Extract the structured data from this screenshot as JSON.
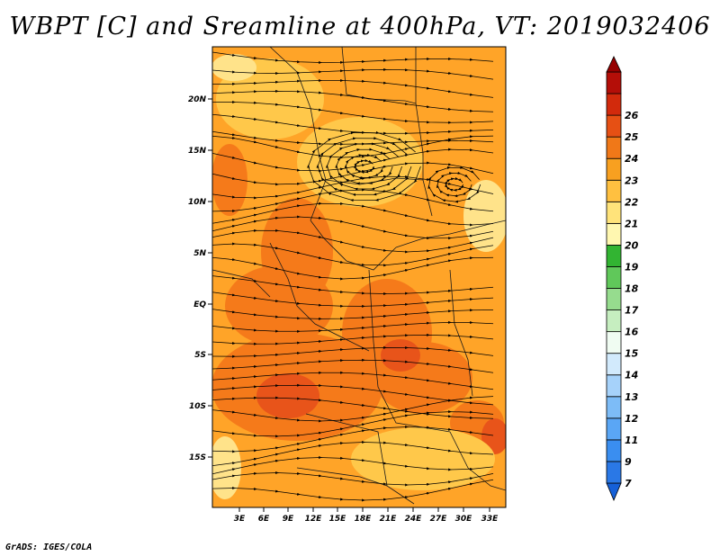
{
  "title": "WBPT [C] and Sreamline at 400hPa, VT: 2019032406",
  "footer": "GrADS: IGES/COLA",
  "map": {
    "lon_ticks": [
      "3E",
      "6E",
      "9E",
      "12E",
      "15E",
      "18E",
      "21E",
      "24E",
      "27E",
      "30E",
      "33E"
    ],
    "lat_ticks": [
      "20N",
      "15N",
      "10N",
      "5N",
      "EQ",
      "5S",
      "10S",
      "15S"
    ]
  },
  "colorbar": {
    "labels": [
      "7",
      "9",
      "11",
      "12",
      "13",
      "14",
      "15",
      "16",
      "17",
      "18",
      "19",
      "20",
      "21",
      "22",
      "23",
      "24",
      "25",
      "26"
    ],
    "colors": [
      "#1560d8",
      "#2a78e6",
      "#3a8ef0",
      "#5aa6f5",
      "#7dbcf7",
      "#a6d2fa",
      "#d2eafc",
      "#f0fcf2",
      "#c6eec0",
      "#96dc8e",
      "#60c85a",
      "#32b432",
      "#fff7b0",
      "#ffe37a",
      "#ffc040",
      "#f8a020",
      "#f07818",
      "#e65014",
      "#d22a0c",
      "#b40e08",
      "#960000"
    ]
  },
  "field_colors": {
    "low": "#ffc84a",
    "mid": "#ffa428",
    "high": "#f57a1a",
    "peak": "#e8541a",
    "light": "#ffe38a"
  }
}
